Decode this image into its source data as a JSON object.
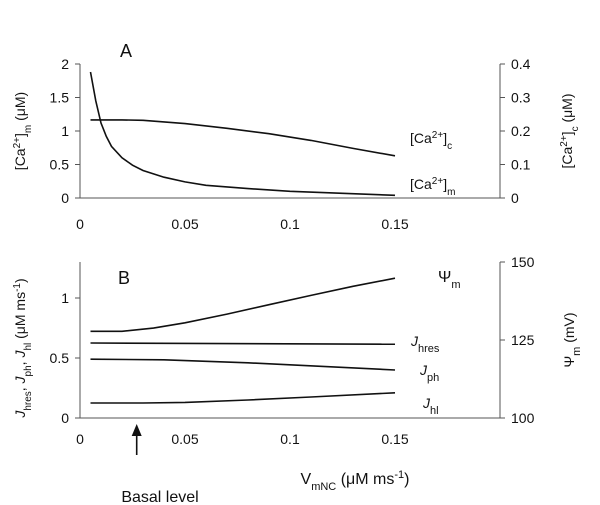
{
  "chart_data": [
    {
      "panel": "A",
      "type": "line",
      "panel_label": "A",
      "x_ticks": [
        "0",
        "0.05",
        "0.1",
        "0.15"
      ],
      "xlim": [
        0,
        0.2
      ],
      "y_left": {
        "label": {
          "pre": "[Ca",
          "sup": "2+",
          "mid": "]",
          "sub": "m",
          "post": " (μM)"
        },
        "ticks": [
          "0",
          "0.5",
          "1",
          "1.5",
          "2"
        ],
        "lim": [
          0,
          2
        ]
      },
      "y_right": {
        "label": {
          "pre": "[Ca",
          "sup": "2+",
          "mid": "]",
          "sub": "c",
          "post": " (μM)"
        },
        "ticks": [
          "0",
          "0.1",
          "0.2",
          "0.3",
          "0.4"
        ],
        "lim": [
          0,
          0.4
        ]
      },
      "series": [
        {
          "label": {
            "pre": "[Ca",
            "sup": "2+",
            "mid": "]",
            "sub": "c"
          },
          "axis": "right",
          "points": [
            [
              0.005,
              0.233
            ],
            [
              0.02,
              0.233
            ],
            [
              0.03,
              0.232
            ],
            [
              0.05,
              0.222
            ],
            [
              0.07,
              0.208
            ],
            [
              0.09,
              0.192
            ],
            [
              0.11,
              0.172
            ],
            [
              0.13,
              0.148
            ],
            [
              0.15,
              0.126
            ]
          ]
        },
        {
          "label": {
            "pre": "[Ca",
            "sup": "2+",
            "mid": "]",
            "sub": "m"
          },
          "axis": "left",
          "points": [
            [
              0.005,
              1.88
            ],
            [
              0.0075,
              1.45
            ],
            [
              0.01,
              1.12
            ],
            [
              0.0125,
              0.92
            ],
            [
              0.015,
              0.77
            ],
            [
              0.02,
              0.6
            ],
            [
              0.025,
              0.49
            ],
            [
              0.03,
              0.41
            ],
            [
              0.04,
              0.31
            ],
            [
              0.05,
              0.24
            ],
            [
              0.06,
              0.19
            ],
            [
              0.08,
              0.14
            ],
            [
              0.1,
              0.1
            ],
            [
              0.125,
              0.07
            ],
            [
              0.15,
              0.04
            ]
          ]
        }
      ]
    },
    {
      "panel": "B",
      "type": "line",
      "panel_label": "B",
      "x_ticks": [
        "0",
        "0.05",
        "0.1",
        "0.15"
      ],
      "xlim": [
        0,
        0.2
      ],
      "xlabel": {
        "main": "V",
        "sub": "mNC",
        "unit": " (μM ms",
        "unit_sup": "-1",
        "close": ")"
      },
      "y_left": {
        "label": "Jhres, Jph, Jhl (μM ms-1)",
        "ticks": [
          "0",
          "0.5",
          "1"
        ],
        "lim": [
          0,
          1.3
        ]
      },
      "y_right": {
        "label": {
          "main": "Ψ",
          "sub": "m",
          "post": " (mV)"
        },
        "ticks": [
          "100",
          "125",
          "150"
        ],
        "lim": [
          100,
          150
        ]
      },
      "series": [
        {
          "label": {
            "main": "Ψ",
            "sub": "m"
          },
          "axis": "right",
          "points": [
            [
              0.005,
              127.8
            ],
            [
              0.02,
              127.8
            ],
            [
              0.035,
              128.8
            ],
            [
              0.05,
              130.5
            ],
            [
              0.07,
              133.3
            ],
            [
              0.09,
              136.3
            ],
            [
              0.11,
              139.3
            ],
            [
              0.13,
              142.2
            ],
            [
              0.15,
              144.8
            ]
          ]
        },
        {
          "label": {
            "main": "J",
            "sub": "hres"
          },
          "axis": "left",
          "points": [
            [
              0.005,
              0.625
            ],
            [
              0.15,
              0.615
            ]
          ]
        },
        {
          "label": {
            "main": "J",
            "sub": "ph"
          },
          "axis": "left",
          "points": [
            [
              0.005,
              0.49
            ],
            [
              0.04,
              0.485
            ],
            [
              0.08,
              0.46
            ],
            [
              0.15,
              0.4
            ]
          ]
        },
        {
          "label": {
            "main": "J",
            "sub": "hl"
          },
          "axis": "left",
          "points": [
            [
              0.005,
              0.125
            ],
            [
              0.03,
              0.125
            ],
            [
              0.05,
              0.13
            ],
            [
              0.08,
              0.15
            ],
            [
              0.11,
              0.175
            ],
            [
              0.15,
              0.21
            ]
          ]
        }
      ]
    }
  ],
  "annotation": {
    "text": "Basal level",
    "x": 0.027
  }
}
